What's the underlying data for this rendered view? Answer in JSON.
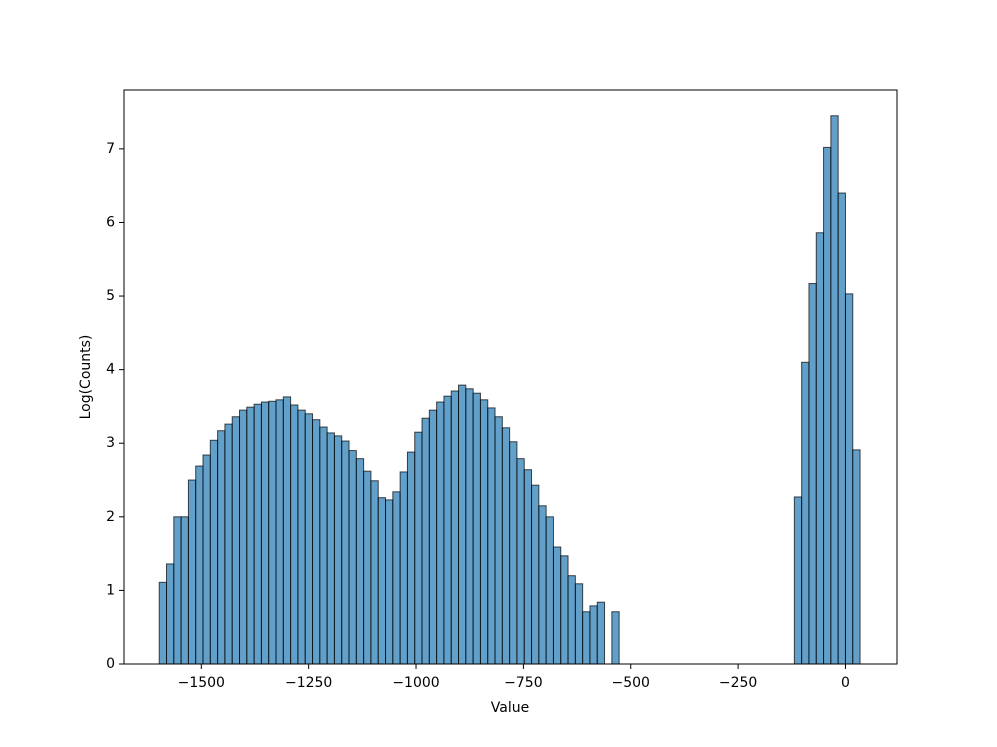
{
  "chart_data": {
    "type": "histogram",
    "x_label": "Value",
    "y_label": "Log(Counts)",
    "bins": [
      -1598,
      -1581,
      -1564,
      -1547,
      -1530,
      -1513,
      -1496,
      -1479,
      -1462,
      -1445,
      -1428,
      -1411,
      -1394,
      -1377,
      -1360,
      -1343,
      -1326,
      -1309,
      -1292,
      -1275,
      -1258,
      -1241,
      -1224,
      -1207,
      -1190,
      -1173,
      -1156,
      -1139,
      -1122,
      -1105,
      -1088,
      -1071,
      -1054,
      -1037,
      -1020,
      -1003,
      -986,
      -969,
      -952,
      -935,
      -918,
      -901,
      -884,
      -867,
      -850,
      -833,
      -816,
      -799,
      -782,
      -765,
      -748,
      -731,
      -714,
      -697,
      -680,
      -663,
      -646,
      -629,
      -612,
      -595,
      -578,
      -561,
      -544,
      -527,
      -510,
      -493,
      -476,
      -459,
      -442,
      -425,
      -408,
      -391,
      -374,
      -357,
      -340,
      -323,
      -306,
      -289,
      -272,
      -255,
      -238,
      -221,
      -204,
      -187,
      -170,
      -153,
      -136,
      -119,
      -102,
      -85,
      -68,
      -51,
      -34,
      -17,
      0,
      17,
      34
    ],
    "values": [
      1.11,
      1.36,
      2.0,
      2.0,
      2.5,
      2.69,
      2.84,
      3.04,
      3.17,
      3.26,
      3.36,
      3.45,
      3.49,
      3.53,
      3.56,
      3.57,
      3.59,
      3.63,
      3.52,
      3.45,
      3.4,
      3.32,
      3.22,
      3.14,
      3.1,
      3.03,
      2.9,
      2.79,
      2.62,
      2.49,
      2.26,
      2.23,
      2.34,
      2.61,
      2.88,
      3.15,
      3.34,
      3.45,
      3.56,
      3.64,
      3.71,
      3.79,
      3.74,
      3.68,
      3.59,
      3.48,
      3.36,
      3.21,
      3.02,
      2.79,
      2.64,
      2.43,
      2.15,
      2.0,
      1.59,
      1.47,
      1.2,
      1.09,
      0.71,
      0.79,
      0.84,
      0,
      0.71,
      0,
      0,
      0,
      0,
      0,
      0,
      0,
      0,
      0,
      0,
      0,
      0,
      0,
      0,
      0,
      0,
      0,
      0,
      0,
      0,
      0,
      0,
      0,
      0,
      2.27,
      4.1,
      5.17,
      5.86,
      7.02,
      7.45,
      6.4,
      5.03,
      2.91
    ],
    "color": "#1f77b4",
    "xlim": [
      -1680,
      120
    ],
    "xticks": [
      {
        "value": -1500,
        "label": "−1500"
      },
      {
        "value": -1250,
        "label": "−1250"
      },
      {
        "value": -1000,
        "label": "−1000"
      },
      {
        "value": -750,
        "label": "−750"
      },
      {
        "value": -500,
        "label": "−500"
      },
      {
        "value": -250,
        "label": "−250"
      },
      0
    ],
    "ylim": [
      0,
      7.8
    ],
    "yticks": [
      0,
      1,
      2,
      3,
      4,
      5,
      6,
      7
    ]
  }
}
